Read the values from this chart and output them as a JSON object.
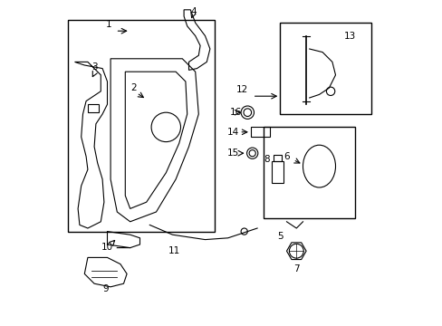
{
  "bg_color": "#ffffff",
  "line_color": "#000000",
  "label_color": "#000000",
  "figsize": [
    4.89,
    3.6
  ],
  "dpi": 100,
  "lw": 0.8,
  "label_fs": 7.5
}
